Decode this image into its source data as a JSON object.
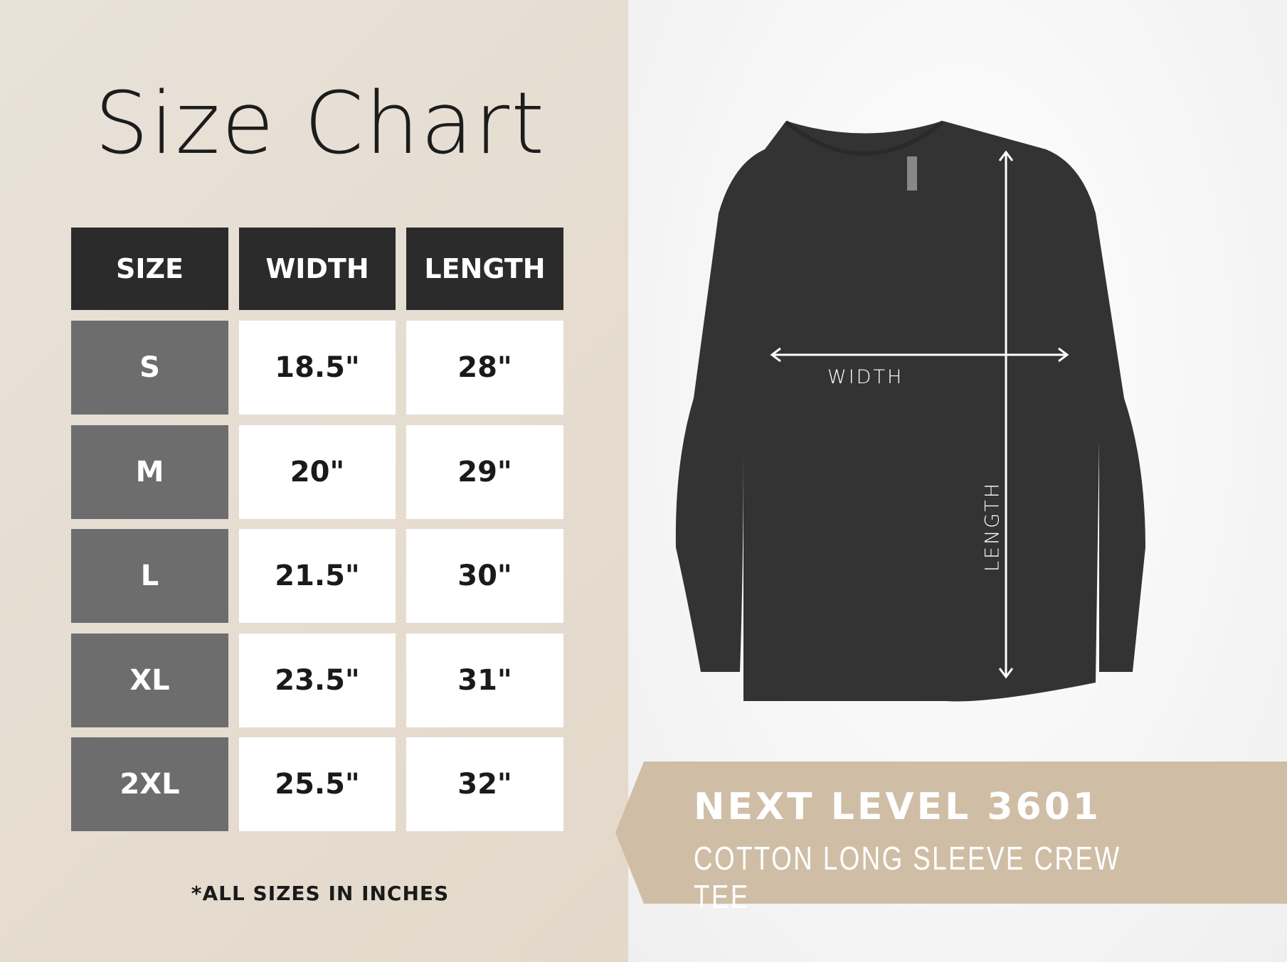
{
  "title": "Size Chart",
  "table": {
    "headers": [
      "SIZE",
      "WIDTH",
      "LENGTH"
    ],
    "rows": [
      [
        "S",
        "18.5\"",
        "28\""
      ],
      [
        "M",
        "20\"",
        "29\""
      ],
      [
        "L",
        "21.5\"",
        "30\""
      ],
      [
        "XL",
        "23.5\"",
        "31\""
      ],
      [
        "2XL",
        "25.5\"",
        "32\""
      ]
    ]
  },
  "note": "*ALL SIZES IN INCHES",
  "diagram": {
    "width_label": "WIDTH",
    "length_label": "LENGTH",
    "shirt_color": "#333333"
  },
  "banner": {
    "product": "NEXT LEVEL 3601",
    "description": "COTTON LONG SLEEVE CREW TEE",
    "color": "#cfbea5"
  }
}
